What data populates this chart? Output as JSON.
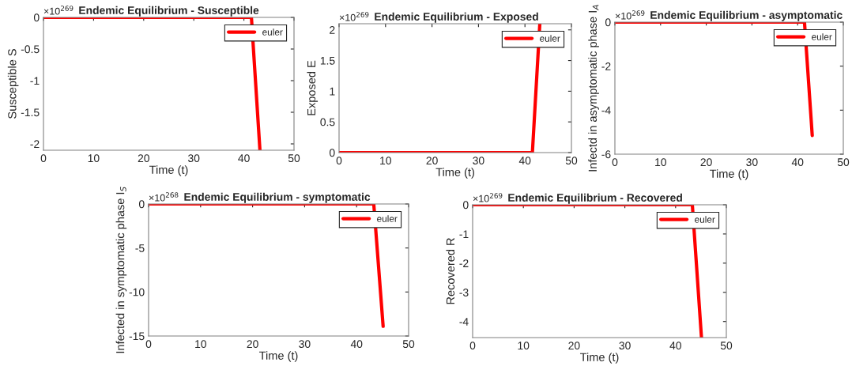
{
  "chart_data": [
    {
      "type": "line",
      "title": "Endemic Equilibrium - Susceptible",
      "xlabel": "Time (t)",
      "ylabel": "Susceptible S",
      "annotations": [
        "×10$^{269}$"
      ],
      "x": [
        0,
        41.5,
        43.2
      ],
      "series": [
        {
          "name": "euler",
          "color": "#ff0000",
          "values": [
            0,
            0,
            -2.1
          ]
        }
      ],
      "xlim": [
        0,
        50
      ],
      "ylim": [
        -2.1,
        0
      ],
      "xticks": [
        0,
        10,
        20,
        30,
        40,
        50
      ],
      "yticks": [
        -2,
        -1.5,
        -1,
        -0.5,
        0
      ],
      "legend": "top right",
      "grid": false
    },
    {
      "type": "line",
      "title": "Endemic Equilibrium - Exposed",
      "xlabel": "Time (t)",
      "ylabel": "Exposed E",
      "annotations": [
        "×10$^{269}$"
      ],
      "x": [
        0,
        41.6,
        43.2
      ],
      "series": [
        {
          "name": "euler",
          "color": "#ff0000",
          "values": [
            0,
            0,
            2.1
          ]
        }
      ],
      "xlim": [
        0,
        50
      ],
      "ylim": [
        0,
        2.1
      ],
      "xticks": [
        0,
        10,
        20,
        30,
        40,
        50
      ],
      "yticks": [
        0,
        0.5,
        1,
        1.5,
        2
      ],
      "legend": "top right",
      "grid": false
    },
    {
      "type": "line",
      "title": "Endemic Equilibrium - asymptomatic",
      "xlabel": "Time (t)",
      "ylabel": "Infectd in asymptomatic phase I$_{A}$",
      "annotations": [
        "×10$^{269}$"
      ],
      "x": [
        0,
        41.5,
        43.2
      ],
      "series": [
        {
          "name": "euler",
          "color": "#ff0000",
          "values": [
            0,
            0,
            -5.15
          ]
        }
      ],
      "xlim": [
        0,
        50
      ],
      "ylim": [
        -6,
        0
      ],
      "xticks": [
        0,
        10,
        20,
        30,
        40,
        50
      ],
      "yticks": [
        -6,
        -4,
        -2,
        0
      ],
      "legend": "top right",
      "grid": false
    },
    {
      "type": "line",
      "title": "Endemic Equilibrium - symptomatic",
      "xlabel": "Time (t)",
      "ylabel": "Infected in symptomatic phase I$_{S}$",
      "annotations": [
        "×10$^{268}$"
      ],
      "x": [
        0,
        43.3,
        45.1
      ],
      "series": [
        {
          "name": "euler",
          "color": "#ff0000",
          "values": [
            0,
            0,
            -13.9
          ]
        }
      ],
      "xlim": [
        0,
        50
      ],
      "ylim": [
        -15,
        0
      ],
      "xticks": [
        0,
        10,
        20,
        30,
        40,
        50
      ],
      "yticks": [
        -15,
        -10,
        -5,
        0
      ],
      "legend": "top right",
      "grid": false
    },
    {
      "type": "line",
      "title": "Endemic Equilibrium - Recovered",
      "xlabel": "Time (t)",
      "ylabel": "Recovered R",
      "annotations": [
        "×10$^{269}$"
      ],
      "x": [
        0,
        43.3,
        45.1
      ],
      "series": [
        {
          "name": "euler",
          "color": "#ff0000",
          "values": [
            0,
            0,
            -4.55
          ]
        }
      ],
      "xlim": [
        0,
        50
      ],
      "ylim": [
        -4.55,
        0
      ],
      "xticks": [
        0,
        10,
        20,
        30,
        40,
        50
      ],
      "yticks": [
        -4,
        -3,
        -2,
        -1,
        0
      ],
      "legend": "top right",
      "grid": false
    }
  ]
}
